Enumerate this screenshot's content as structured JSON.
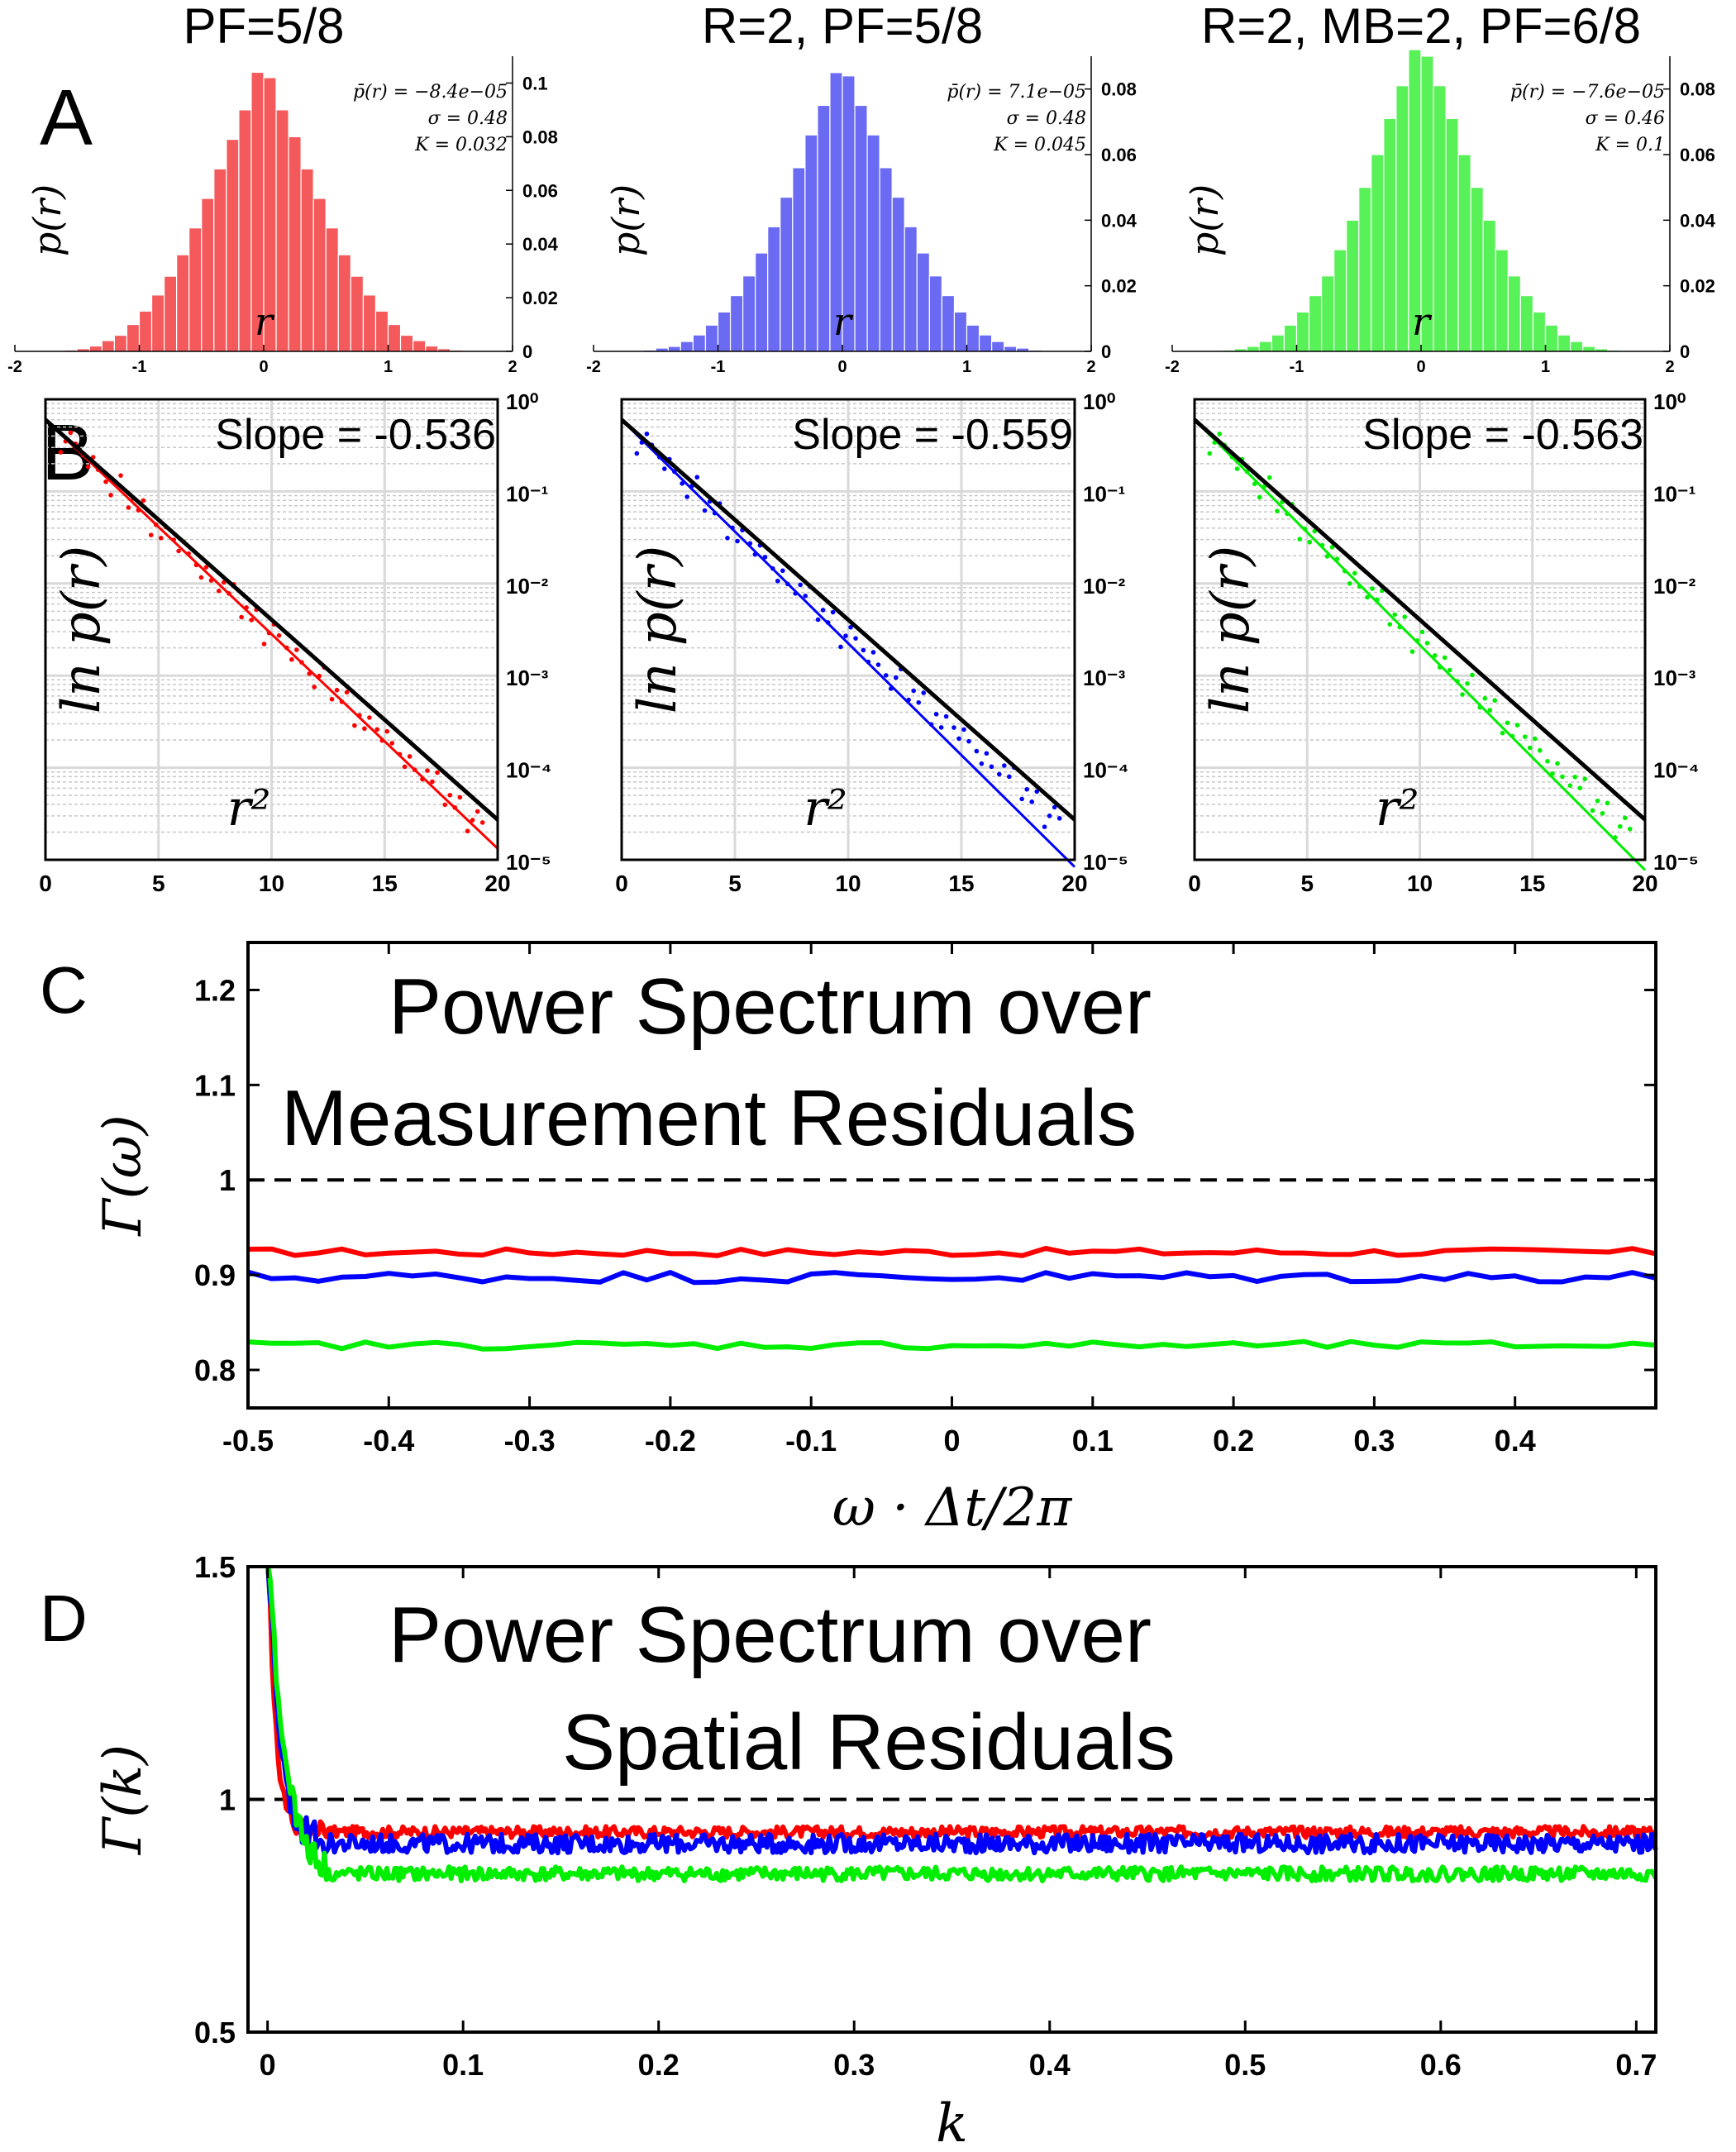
{
  "chart_data": [
    {
      "id": "A",
      "type": "bar",
      "panel_label": "A",
      "panels": [
        {
          "title": "PF=5/8",
          "color": "#f4595b",
          "ylabel": "p(r)",
          "xlabel": "r",
          "xlim": [
            -2,
            2
          ],
          "ylim": [
            0,
            0.11
          ],
          "xticks": [
            "-2",
            "-1",
            "0",
            "1",
            "2"
          ],
          "yticks": [
            "0",
            "0.02",
            "0.04",
            "0.06",
            "0.08",
            "0.1"
          ],
          "annotations": [
            "p̄(r) = −8.4e−05",
            "σ = 0.48",
            "K = 0.032"
          ],
          "bin_width": 0.1,
          "bin_centers": [
            -1.55,
            -1.45,
            -1.35,
            -1.25,
            -1.15,
            -1.05,
            -0.95,
            -0.85,
            -0.75,
            -0.65,
            -0.55,
            -0.45,
            -0.35,
            -0.25,
            -0.15,
            -0.05,
            0.05,
            0.15,
            0.25,
            0.35,
            0.45,
            0.55,
            0.65,
            0.75,
            0.85,
            0.95,
            1.05,
            1.15,
            1.25,
            1.35,
            1.45,
            1.55
          ],
          "values": [
            0.0005,
            0.001,
            0.002,
            0.004,
            0.006,
            0.01,
            0.015,
            0.021,
            0.028,
            0.036,
            0.046,
            0.057,
            0.068,
            0.079,
            0.09,
            0.104,
            0.102,
            0.09,
            0.08,
            0.068,
            0.057,
            0.046,
            0.036,
            0.028,
            0.021,
            0.015,
            0.01,
            0.006,
            0.004,
            0.002,
            0.001,
            0.0005
          ]
        },
        {
          "title": "R=2, PF=5/8",
          "color": "#6a6af2",
          "ylabel": "p(r)",
          "xlabel": "r",
          "xlim": [
            -2,
            2
          ],
          "ylim": [
            0,
            0.09
          ],
          "xticks": [
            "-2",
            "-1",
            "0",
            "1",
            "2"
          ],
          "yticks": [
            "0",
            "0.02",
            "0.04",
            "0.06",
            "0.08"
          ],
          "annotations": [
            "p̄(r) = 7.1e−05",
            "σ = 0.48",
            "K = 0.045"
          ],
          "bin_width": 0.1,
          "bin_centers": [
            -1.55,
            -1.45,
            -1.35,
            -1.25,
            -1.15,
            -1.05,
            -0.95,
            -0.85,
            -0.75,
            -0.65,
            -0.55,
            -0.45,
            -0.35,
            -0.25,
            -0.15,
            -0.05,
            0.05,
            0.15,
            0.25,
            0.35,
            0.45,
            0.55,
            0.65,
            0.75,
            0.85,
            0.95,
            1.05,
            1.15,
            1.25,
            1.35,
            1.45,
            1.55
          ],
          "values": [
            0.0004,
            0.001,
            0.0015,
            0.003,
            0.005,
            0.008,
            0.012,
            0.017,
            0.023,
            0.03,
            0.038,
            0.047,
            0.056,
            0.066,
            0.075,
            0.085,
            0.084,
            0.075,
            0.066,
            0.056,
            0.047,
            0.038,
            0.03,
            0.023,
            0.017,
            0.012,
            0.008,
            0.005,
            0.003,
            0.0015,
            0.001,
            0.0004
          ]
        },
        {
          "title": "R=2, MB=2, PF=6/8",
          "color": "#58f158",
          "ylabel": "p(r)",
          "xlabel": "r",
          "xlim": [
            -2,
            2
          ],
          "ylim": [
            0,
            0.09
          ],
          "xticks": [
            "-2",
            "-1",
            "0",
            "1",
            "2"
          ],
          "yticks": [
            "0",
            "0.02",
            "0.04",
            "0.06",
            "0.08"
          ],
          "annotations": [
            "p̄(r) = −7.6e−05",
            "σ = 0.46",
            "K = 0.1"
          ],
          "bin_width": 0.1,
          "bin_centers": [
            -1.55,
            -1.45,
            -1.35,
            -1.25,
            -1.15,
            -1.05,
            -0.95,
            -0.85,
            -0.75,
            -0.65,
            -0.55,
            -0.45,
            -0.35,
            -0.25,
            -0.15,
            -0.05,
            0.05,
            0.15,
            0.25,
            0.35,
            0.45,
            0.55,
            0.65,
            0.75,
            0.85,
            0.95,
            1.05,
            1.15,
            1.25,
            1.35,
            1.45,
            1.55
          ],
          "values": [
            0.0004,
            0.0008,
            0.0015,
            0.003,
            0.005,
            0.008,
            0.012,
            0.017,
            0.023,
            0.031,
            0.04,
            0.05,
            0.06,
            0.071,
            0.081,
            0.092,
            0.09,
            0.081,
            0.071,
            0.06,
            0.05,
            0.04,
            0.031,
            0.023,
            0.017,
            0.012,
            0.008,
            0.005,
            0.003,
            0.0015,
            0.0008,
            0.0004
          ]
        }
      ]
    },
    {
      "id": "B",
      "type": "scatter",
      "panel_label": "B",
      "panels": [
        {
          "color": "#ff0000",
          "slope_text": "Slope = -0.536",
          "ylabel": "ln p(r)",
          "xlabel": "r²",
          "xlim": [
            0,
            20
          ],
          "ylim": [
            1e-05,
            1
          ],
          "yscale": "log",
          "xticks": [
            "0",
            "5",
            "10",
            "15",
            "20"
          ],
          "yticks": [
            "10⁻⁵",
            "10⁻⁴",
            "10⁻³",
            "10⁻²",
            "10⁻¹",
            "10⁰"
          ],
          "reference_line": {
            "color": "#000000",
            "p0": 0.6,
            "slope": -0.5
          },
          "fit_line": {
            "p0": 0.6,
            "slope": -0.536
          },
          "points_x": [
            1,
            2,
            3,
            4,
            5,
            6,
            7,
            8,
            9,
            10,
            11,
            12,
            13,
            14,
            15,
            16,
            17,
            18,
            19
          ],
          "points_y": [
            0.35,
            0.21,
            0.12,
            0.071,
            0.041,
            0.024,
            0.0142,
            0.0083,
            0.0049,
            0.0029,
            0.0017,
            0.00099,
            0.00059,
            0.00035,
            0.00021,
            0.000125,
            7.5e-05,
            4.5e-05,
            2.7e-05
          ]
        },
        {
          "color": "#0000ff",
          "slope_text": "Slope = -0.559",
          "ylabel": "ln p(r)",
          "xlabel": "r²",
          "xlim": [
            0,
            20
          ],
          "ylim": [
            1e-05,
            1
          ],
          "yscale": "log",
          "xticks": [
            "0",
            "5",
            "10",
            "15",
            "20"
          ],
          "yticks": [
            "10⁻⁵",
            "10⁻⁴",
            "10⁻³",
            "10⁻²",
            "10⁻¹",
            "10⁰"
          ],
          "reference_line": {
            "color": "#000000",
            "p0": 0.6,
            "slope": -0.5
          },
          "fit_line": {
            "p0": 0.6,
            "slope": -0.559
          },
          "points_x": [
            1,
            2,
            3,
            4,
            5,
            6,
            7,
            8,
            9,
            10,
            11,
            12,
            13,
            14,
            15,
            16,
            17,
            18,
            19
          ],
          "points_y": [
            0.34,
            0.2,
            0.115,
            0.066,
            0.038,
            0.022,
            0.013,
            0.0078,
            0.0046,
            0.0027,
            0.0016,
            0.00095,
            0.00058,
            0.00036,
            0.00022,
            0.000135,
            8.5e-05,
            5.2e-05,
            3e-05
          ]
        },
        {
          "color": "#00ee00",
          "slope_text": "Slope = -0.563",
          "ylabel": "ln p(r)",
          "xlabel": "r²",
          "xlim": [
            0,
            20
          ],
          "ylim": [
            1e-05,
            1
          ],
          "yscale": "log",
          "xticks": [
            "0",
            "5",
            "10",
            "15",
            "20"
          ],
          "yticks": [
            "10⁻⁵",
            "10⁻⁴",
            "10⁻³",
            "10⁻²",
            "10⁻¹",
            "10⁰"
          ],
          "reference_line": {
            "color": "#000000",
            "p0": 0.6,
            "slope": -0.5
          },
          "fit_line": {
            "p0": 0.6,
            "slope": -0.563
          },
          "points_x": [
            1,
            2,
            3,
            4,
            5,
            6,
            7,
            8,
            9,
            10,
            11,
            12,
            13,
            14,
            15,
            16,
            17,
            18,
            19
          ],
          "points_y": [
            0.34,
            0.2,
            0.114,
            0.065,
            0.037,
            0.021,
            0.0122,
            0.0071,
            0.0041,
            0.0024,
            0.0014,
            0.00082,
            0.00048,
            0.00029,
            0.000175,
            0.000105,
            6.4e-05,
            3.9e-05,
            2.3e-05
          ]
        }
      ]
    },
    {
      "id": "C",
      "type": "line",
      "panel_label": "C",
      "title_lines": [
        "Power Spectrum over",
        "Measurement Residuals"
      ],
      "xlabel": "ω · Δt/2π",
      "ylabel": "Γ(ω)",
      "xlim": [
        -0.5,
        0.5
      ],
      "ylim": [
        0.76,
        1.25
      ],
      "xticks": [
        "-0.5",
        "-0.4",
        "-0.3",
        "-0.2",
        "-0.1",
        "0",
        "0.1",
        "0.2",
        "0.3",
        "0.4"
      ],
      "yticks": [
        "0.8",
        "0.9",
        "1",
        "1.1",
        "1.2"
      ],
      "reference_line": {
        "y": 1,
        "style": "dashed",
        "color": "#000000"
      },
      "series": [
        {
          "name": "PF=5/8",
          "color": "#ff0000",
          "mean": 0.924,
          "noise": 0.004
        },
        {
          "name": "R=2, PF=5/8",
          "color": "#0000ff",
          "mean": 0.898,
          "noise": 0.006
        },
        {
          "name": "R=2, MB=2, PF=6/8",
          "color": "#00ee00",
          "mean": 0.826,
          "noise": 0.004
        }
      ]
    },
    {
      "id": "D",
      "type": "line",
      "panel_label": "D",
      "title_lines": [
        "Power Spectrum over",
        "Spatial Residuals"
      ],
      "xlabel": "k",
      "ylabel": "Γ(k)",
      "xlim": [
        -0.01,
        0.71
      ],
      "ylim": [
        0.5,
        1.5
      ],
      "xticks": [
        "0",
        "0.1",
        "0.2",
        "0.3",
        "0.4",
        "0.5",
        "0.6",
        "0.7"
      ],
      "yticks": [
        "0.5",
        "1",
        "1.5"
      ],
      "reference_line": {
        "y": 1,
        "style": "dashed",
        "color": "#000000"
      },
      "series": [
        {
          "name": "PF=5/8",
          "color": "#ff0000",
          "mean": 0.93,
          "noise": 0.012
        },
        {
          "name": "R=2, PF=5/8",
          "color": "#0000ff",
          "mean": 0.905,
          "noise": 0.02
        },
        {
          "name": "R=2, MB=2, PF=6/8",
          "color": "#00ee00",
          "mean": 0.84,
          "noise": 0.015
        }
      ]
    }
  ]
}
